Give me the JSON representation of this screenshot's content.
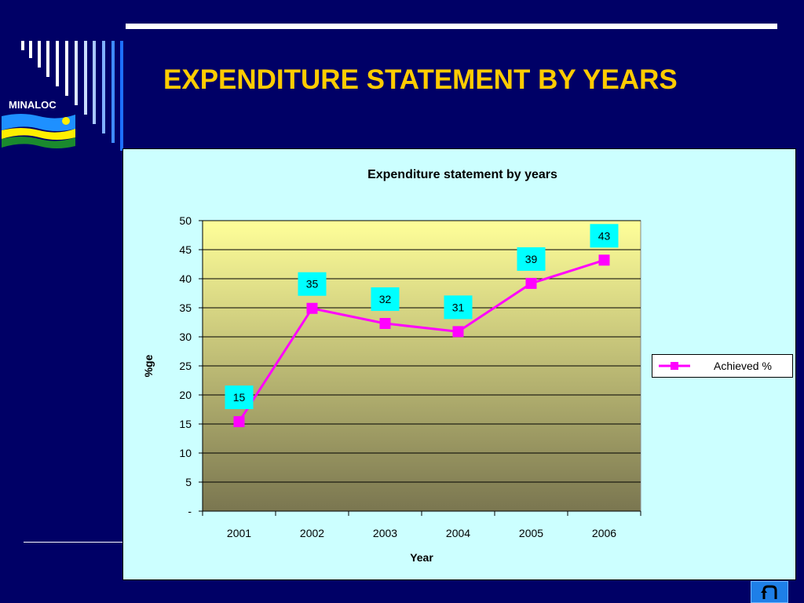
{
  "slide": {
    "title": "EXPENDITURE STATEMENT BY YEARS",
    "logo_text": "MINALOC"
  },
  "colors": {
    "background": "#000066",
    "title": "#ffcc00",
    "panel": "#ccffff",
    "series": "#ff00ff",
    "label_box": "#00ffff",
    "plot_top": "#ffff99",
    "plot_bottom": "#7a7650"
  },
  "icons": {
    "return_button": "return-arrow-icon",
    "logo": "rwanda-flag-icon"
  },
  "chart_data": {
    "type": "line",
    "title": "Expenditure statement by years",
    "xlabel": "Year",
    "ylabel": "%ge",
    "categories": [
      "2001",
      "2002",
      "2003",
      "2004",
      "2005",
      "2006"
    ],
    "series": [
      {
        "name": "Achieved %",
        "values": [
          15.4,
          34.9,
          32.3,
          30.9,
          39.2,
          43.2
        ],
        "labels": [
          "15",
          "35",
          "32",
          "31",
          "39",
          "43"
        ],
        "color": "#ff00ff"
      }
    ],
    "ylim": [
      0,
      50
    ],
    "yticks": [
      "-",
      "5",
      "10",
      "15",
      "20",
      "25",
      "30",
      "35",
      "40",
      "45",
      "50"
    ],
    "grid": true,
    "legend_position": "right"
  }
}
